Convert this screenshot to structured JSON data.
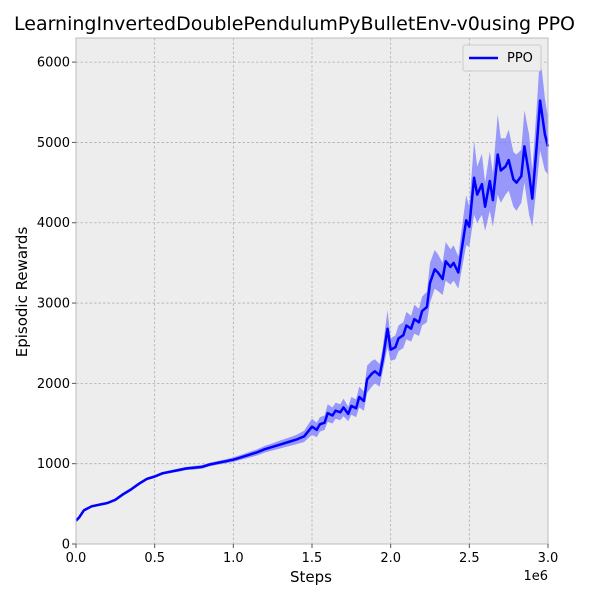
{
  "chart_data": {
    "type": "line",
    "title": "LearningInvertedDoublePendulumPyBulletEnv-v0using PPO",
    "xlabel": "Steps",
    "ylabel": "Episodic Rewards",
    "x_offset_label": "1e6",
    "xlim": [
      0,
      3.0
    ],
    "ylim": [
      0,
      6300
    ],
    "x_ticks": [
      0.0,
      0.5,
      1.0,
      1.5,
      2.0,
      2.5,
      3.0
    ],
    "x_tick_labels": [
      "0.0",
      "0.5",
      "1.0",
      "1.5",
      "2.0",
      "2.5",
      "3.0"
    ],
    "y_ticks": [
      0,
      1000,
      2000,
      3000,
      4000,
      5000,
      6000
    ],
    "y_tick_labels": [
      "0",
      "1000",
      "2000",
      "3000",
      "4000",
      "5000",
      "6000"
    ],
    "grid": true,
    "legend_position": "top-right",
    "background_color": "#ededed",
    "series": [
      {
        "name": "PPO",
        "color": "#0000ff",
        "band_color": "#7b7bff",
        "x": [
          0.0,
          0.02,
          0.05,
          0.1,
          0.15,
          0.2,
          0.25,
          0.3,
          0.35,
          0.4,
          0.45,
          0.5,
          0.55,
          0.6,
          0.65,
          0.7,
          0.75,
          0.8,
          0.85,
          0.9,
          0.95,
          1.0,
          1.05,
          1.1,
          1.15,
          1.2,
          1.25,
          1.3,
          1.35,
          1.4,
          1.45,
          1.5,
          1.53,
          1.55,
          1.58,
          1.6,
          1.63,
          1.65,
          1.68,
          1.7,
          1.73,
          1.75,
          1.78,
          1.8,
          1.83,
          1.85,
          1.88,
          1.9,
          1.93,
          1.95,
          1.98,
          2.0,
          2.03,
          2.05,
          2.08,
          2.1,
          2.13,
          2.15,
          2.18,
          2.2,
          2.23,
          2.25,
          2.28,
          2.3,
          2.33,
          2.35,
          2.38,
          2.4,
          2.43,
          2.45,
          2.48,
          2.5,
          2.53,
          2.55,
          2.58,
          2.6,
          2.63,
          2.65,
          2.68,
          2.7,
          2.73,
          2.75,
          2.78,
          2.8,
          2.83,
          2.85,
          2.88,
          2.9,
          2.93,
          2.95,
          2.98,
          3.0
        ],
        "y": [
          290,
          330,
          420,
          470,
          490,
          510,
          550,
          620,
          680,
          750,
          810,
          840,
          880,
          900,
          920,
          940,
          950,
          960,
          990,
          1010,
          1030,
          1050,
          1080,
          1110,
          1140,
          1180,
          1210,
          1240,
          1270,
          1300,
          1340,
          1460,
          1420,
          1490,
          1510,
          1630,
          1600,
          1660,
          1640,
          1700,
          1620,
          1720,
          1690,
          1830,
          1780,
          2050,
          2120,
          2150,
          2100,
          2300,
          2680,
          2420,
          2450,
          2560,
          2600,
          2720,
          2680,
          2800,
          2760,
          2900,
          2950,
          3250,
          3420,
          3380,
          3300,
          3520,
          3450,
          3500,
          3380,
          3650,
          4030,
          3950,
          4560,
          4350,
          4480,
          4200,
          4520,
          4280,
          4850,
          4650,
          4700,
          4780,
          4540,
          4500,
          4580,
          4950,
          4600,
          4300,
          5000,
          5520,
          5100,
          4950
        ],
        "lower": [
          270,
          310,
          400,
          455,
          478,
          498,
          535,
          600,
          660,
          732,
          792,
          822,
          862,
          882,
          900,
          920,
          928,
          938,
          968,
          986,
          1004,
          1022,
          1048,
          1075,
          1102,
          1138,
          1165,
          1190,
          1218,
          1242,
          1270,
          1360,
          1330,
          1400,
          1420,
          1520,
          1500,
          1560,
          1540,
          1590,
          1530,
          1610,
          1580,
          1700,
          1660,
          1880,
          1960,
          2000,
          1960,
          2150,
          2450,
          2280,
          2300,
          2400,
          2440,
          2550,
          2520,
          2620,
          2590,
          2720,
          2760,
          3000,
          3180,
          3150,
          3100,
          3280,
          3230,
          3280,
          3180,
          3400,
          3720,
          3700,
          4100,
          4000,
          4100,
          3900,
          4150,
          3950,
          4350,
          4250,
          4350,
          4400,
          4200,
          4150,
          4250,
          4500,
          4100,
          3950,
          4500,
          4900,
          4650,
          4600
        ],
        "upper": [
          310,
          350,
          440,
          485,
          502,
          522,
          565,
          640,
          700,
          768,
          828,
          858,
          898,
          918,
          940,
          960,
          972,
          982,
          1012,
          1034,
          1056,
          1078,
          1112,
          1145,
          1178,
          1222,
          1255,
          1290,
          1322,
          1358,
          1410,
          1560,
          1510,
          1580,
          1600,
          1740,
          1700,
          1760,
          1740,
          1810,
          1710,
          1830,
          1800,
          1960,
          1900,
          2220,
          2280,
          2300,
          2240,
          2450,
          2910,
          2560,
          2600,
          2720,
          2760,
          2890,
          2840,
          2980,
          2930,
          3080,
          3140,
          3500,
          3660,
          3610,
          3500,
          3760,
          3670,
          3720,
          3580,
          3900,
          4340,
          4200,
          5020,
          4700,
          4860,
          4500,
          4890,
          4610,
          5350,
          5050,
          5050,
          5160,
          4880,
          4850,
          4910,
          5400,
          5100,
          4650,
          5500,
          6100,
          5550,
          5300
        ]
      }
    ]
  }
}
